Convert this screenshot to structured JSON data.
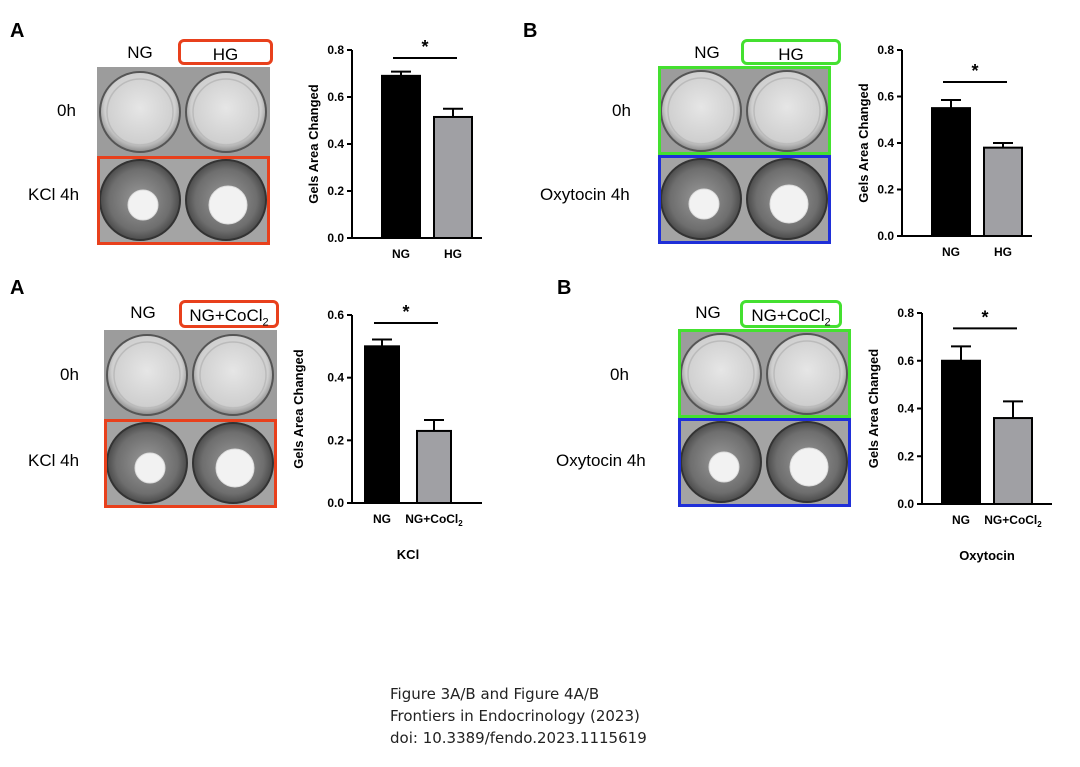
{
  "panels": [
    {
      "letter": "A",
      "conditions": {
        "control": "NG",
        "treated": "HG",
        "treated_sub": ""
      },
      "rows": {
        "top": "0h",
        "bottom": "KCl 4h"
      },
      "colors": {
        "treated_box": "#e8401c",
        "top_frame": "",
        "bottom_frame": "#e8401c"
      },
      "chart_data": {
        "type": "bar",
        "categories": [
          "NG",
          "HG"
        ],
        "category_subs": [
          "",
          ""
        ],
        "values": [
          0.69,
          0.515
        ],
        "errors": [
          0.018,
          0.035
        ],
        "ylabel": "Gels Area Changed",
        "xlabel": "",
        "ylim": [
          0,
          0.8
        ],
        "yticks": [
          "0.0",
          "0.2",
          "0.4",
          "0.6",
          "0.8"
        ],
        "significance": "*",
        "bar_colors": [
          "#000000",
          "#a0a0a4"
        ]
      }
    },
    {
      "letter": "B",
      "conditions": {
        "control": "NG",
        "treated": "HG",
        "treated_sub": ""
      },
      "rows": {
        "top": "0h",
        "bottom": "Oxytocin 4h"
      },
      "colors": {
        "treated_box": "#44e030",
        "top_frame": "#44e030",
        "bottom_frame": "#1f2fd8"
      },
      "chart_data": {
        "type": "bar",
        "categories": [
          "NG",
          "HG"
        ],
        "category_subs": [
          "",
          ""
        ],
        "values": [
          0.55,
          0.38
        ],
        "errors": [
          0.035,
          0.02
        ],
        "ylabel": "Gels Area Changed",
        "xlabel": "",
        "ylim": [
          0,
          0.8
        ],
        "yticks": [
          "0.0",
          "0.2",
          "0.4",
          "0.6",
          "0.8"
        ],
        "significance": "*",
        "bar_colors": [
          "#000000",
          "#a0a0a4"
        ]
      }
    },
    {
      "letter": "A",
      "conditions": {
        "control": "NG",
        "treated": "NG+CoCl",
        "treated_sub": "2"
      },
      "rows": {
        "top": "0h",
        "bottom": "KCl 4h"
      },
      "colors": {
        "treated_box": "#e8401c",
        "top_frame": "",
        "bottom_frame": "#e8401c"
      },
      "chart_data": {
        "type": "bar",
        "categories": [
          "NG",
          "NG+CoCl"
        ],
        "category_subs": [
          "",
          "2"
        ],
        "values": [
          0.5,
          0.23
        ],
        "errors": [
          0.022,
          0.035
        ],
        "ylabel": "Gels Area Changed",
        "xlabel": "KCl",
        "ylim": [
          0,
          0.6
        ],
        "yticks": [
          "0.0",
          "0.2",
          "0.4",
          "0.6"
        ],
        "significance": "*",
        "bar_colors": [
          "#000000",
          "#a0a0a4"
        ]
      }
    },
    {
      "letter": "B",
      "conditions": {
        "control": "NG",
        "treated": "NG+CoCl",
        "treated_sub": "2"
      },
      "rows": {
        "top": "0h",
        "bottom": "Oxytocin 4h"
      },
      "colors": {
        "treated_box": "#44e030",
        "top_frame": "#44e030",
        "bottom_frame": "#1f2fd8"
      },
      "chart_data": {
        "type": "bar",
        "categories": [
          "NG",
          "NG+CoCl"
        ],
        "category_subs": [
          "",
          "2"
        ],
        "values": [
          0.6,
          0.36
        ],
        "errors": [
          0.06,
          0.07
        ],
        "ylabel": "Gels Area Changed",
        "xlabel": "Oxytocin",
        "ylim": [
          0,
          0.8
        ],
        "yticks": [
          "0.0",
          "0.2",
          "0.4",
          "0.6",
          "0.8"
        ],
        "significance": "*",
        "bar_colors": [
          "#000000",
          "#a0a0a4"
        ]
      }
    }
  ],
  "caption": {
    "line1": "Figure 3A/B and Figure 4A/B",
    "line2": "Frontiers in Endocrinology (2023)",
    "line3": "doi: 10.3389/fendo.2023.1115619"
  }
}
